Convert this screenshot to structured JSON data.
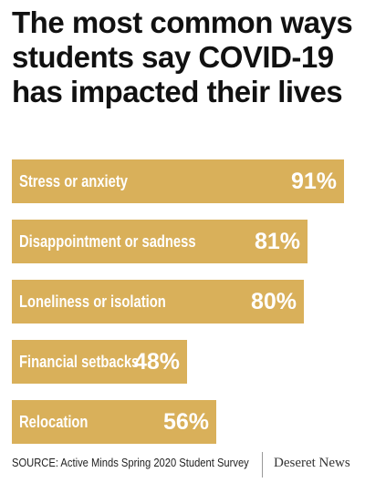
{
  "chart_data": {
    "type": "bar",
    "orientation": "horizontal",
    "title": "The most common ways students say COVID-19 has impacted their lives",
    "categories": [
      "Stress or anxiety",
      "Disappointment or sadness",
      "Loneliness or isolation",
      "Financial setbacks",
      "Relocation"
    ],
    "values": [
      91,
      81,
      80,
      48,
      56
    ],
    "value_labels": [
      "91%",
      "81%",
      "80%",
      "48%",
      "56%"
    ],
    "unit": "%",
    "xlim": [
      0,
      100
    ],
    "grid": false,
    "legend": "none",
    "bar_color": "#d9b05a",
    "label_color": "#ffffff"
  },
  "source": "SOURCE: Active Minds Spring 2020 Student Survey",
  "brand": "Deseret News"
}
